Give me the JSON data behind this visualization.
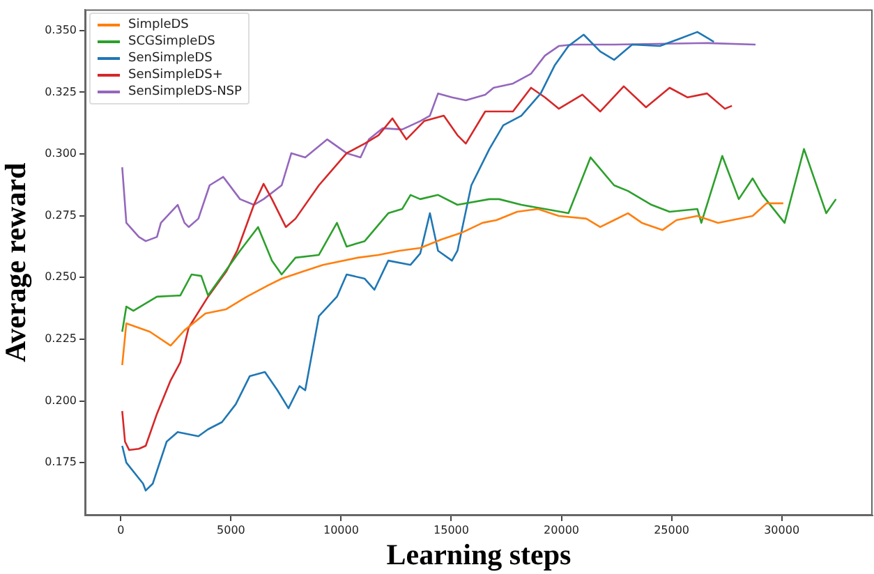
{
  "chart_data": {
    "type": "line",
    "xlabel": "Learning steps",
    "ylabel": "Average reward",
    "xlim": [
      -1625,
      34125
    ],
    "ylim": [
      0.1536,
      0.3585
    ],
    "xticks": [
      0,
      5000,
      10000,
      15000,
      20000,
      25000,
      30000
    ],
    "yticks": [
      {
        "value": 0.175,
        "label": "0.175"
      },
      {
        "value": 0.2,
        "label": "0.200"
      },
      {
        "value": 0.225,
        "label": "0.225"
      },
      {
        "value": 0.25,
        "label": "0.250"
      },
      {
        "value": 0.275,
        "label": "0.275"
      },
      {
        "value": 0.3,
        "label": "0.300"
      },
      {
        "value": 0.325,
        "label": "0.325"
      },
      {
        "value": 0.35,
        "label": "0.350"
      }
    ],
    "grid": false,
    "legend": "top left",
    "series": [
      {
        "name": "SimpleDS",
        "color": "#ff7f0e",
        "x": [
          63,
          250,
          1320,
          2260,
          2890,
          3840,
          4780,
          5720,
          6670,
          7300,
          8240,
          9180,
          10760,
          11700,
          12640,
          13590,
          14530,
          15470,
          16420,
          17050,
          17990,
          18930,
          19880,
          21130,
          21760,
          22390,
          23020,
          23650,
          24590,
          25220,
          26170,
          27110,
          28680,
          29310,
          30070
        ],
        "values": [
          0.2145,
          0.2314,
          0.228,
          0.2224,
          0.2286,
          0.2354,
          0.2371,
          0.2422,
          0.2467,
          0.2495,
          0.2523,
          0.2551,
          0.258,
          0.2591,
          0.2608,
          0.2619,
          0.2653,
          0.2681,
          0.2721,
          0.2732,
          0.2766,
          0.2777,
          0.2749,
          0.2738,
          0.2704,
          0.2732,
          0.276,
          0.2721,
          0.2692,
          0.2732,
          0.2749,
          0.2721,
          0.2749,
          0.28,
          0.28
        ]
      },
      {
        "name": "SCGSimpleDS",
        "color": "#2ca02c",
        "x": [
          63,
          250,
          570,
          1640,
          2700,
          3210,
          3650,
          3960,
          5410,
          6230,
          6860,
          7300,
          7930,
          8990,
          9810,
          10250,
          11070,
          12140,
          12770,
          13150,
          13590,
          14400,
          15280,
          16730,
          17170,
          18180,
          19250,
          20320,
          21320,
          22390,
          23020,
          24090,
          24910,
          26170,
          26350,
          27300,
          28050,
          28680,
          29120,
          30130,
          31010,
          32020,
          32460
        ],
        "values": [
          0.228,
          0.2382,
          0.2365,
          0.2422,
          0.2427,
          0.2512,
          0.2506,
          0.2427,
          0.2608,
          0.2704,
          0.2568,
          0.2512,
          0.258,
          0.2591,
          0.2721,
          0.2625,
          0.2647,
          0.276,
          0.2777,
          0.2834,
          0.2817,
          0.2834,
          0.2794,
          0.2817,
          0.2817,
          0.2794,
          0.2777,
          0.276,
          0.2986,
          0.2873,
          0.285,
          0.2794,
          0.2766,
          0.2777,
          0.2721,
          0.2992,
          0.2817,
          0.2901,
          0.2834,
          0.2721,
          0.302,
          0.276,
          0.2817
        ]
      },
      {
        "name": "SenSimpleDS",
        "color": "#1f77b4",
        "x": [
          63,
          250,
          1010,
          1130,
          1450,
          2080,
          2580,
          3520,
          3960,
          4590,
          5220,
          5850,
          6540,
          7110,
          7610,
          8110,
          8370,
          8990,
          9810,
          10250,
          11070,
          11510,
          12140,
          13150,
          13590,
          14030,
          14400,
          15030,
          15280,
          15910,
          16730,
          17360,
          18180,
          19060,
          19690,
          20320,
          21010,
          21760,
          22390,
          23210,
          24470,
          25350,
          26170,
          26920
        ],
        "values": [
          0.1818,
          0.175,
          0.1665,
          0.1637,
          0.1665,
          0.1835,
          0.1874,
          0.1857,
          0.1885,
          0.1914,
          0.1987,
          0.21,
          0.2117,
          0.2043,
          0.197,
          0.206,
          0.2043,
          0.2343,
          0.2422,
          0.2512,
          0.2495,
          0.245,
          0.2568,
          0.2551,
          0.2597,
          0.276,
          0.2608,
          0.2568,
          0.2608,
          0.2873,
          0.302,
          0.3116,
          0.3155,
          0.3245,
          0.3358,
          0.3437,
          0.3483,
          0.3415,
          0.3381,
          0.3443,
          0.3437,
          0.3466,
          0.3494,
          0.3454
        ]
      },
      {
        "name": "SenSimpleDS+",
        "color": "#d62728",
        "x": [
          63,
          190,
          380,
          820,
          1130,
          1640,
          2260,
          2700,
          3080,
          3960,
          4780,
          5280,
          6040,
          6480,
          6860,
          7490,
          7930,
          8990,
          10250,
          11070,
          11700,
          12330,
          12960,
          13770,
          14660,
          15280,
          15660,
          16540,
          16920,
          17800,
          18620,
          19250,
          19880,
          20950,
          21760,
          22830,
          23840,
          24910,
          25730,
          26610,
          27420,
          27740
        ],
        "values": [
          0.1959,
          0.1835,
          0.1801,
          0.1806,
          0.1818,
          0.1948,
          0.2083,
          0.2156,
          0.2297,
          0.2422,
          0.2523,
          0.2608,
          0.2794,
          0.2879,
          0.2817,
          0.2704,
          0.2738,
          0.2873,
          0.3003,
          0.3042,
          0.3076,
          0.3144,
          0.3059,
          0.3133,
          0.3155,
          0.3076,
          0.3042,
          0.3172,
          0.3172,
          0.3172,
          0.3268,
          0.3229,
          0.3183,
          0.324,
          0.3172,
          0.3274,
          0.3189,
          0.3268,
          0.3229,
          0.3245,
          0.3183,
          0.3195
        ]
      },
      {
        "name": "SenSimpleDS-NSP",
        "color": "#9467bd",
        "x": [
          63,
          250,
          820,
          1130,
          1640,
          1820,
          2580,
          2890,
          3080,
          3520,
          4030,
          4650,
          5410,
          6040,
          6480,
          7300,
          7740,
          8370,
          9370,
          10250,
          10880,
          11260,
          11890,
          12770,
          13590,
          14030,
          14400,
          15030,
          15660,
          16540,
          16920,
          17800,
          18620,
          19250,
          19880,
          20510,
          22390,
          26610,
          28810
        ],
        "values": [
          0.2946,
          0.2721,
          0.2664,
          0.2647,
          0.2664,
          0.2721,
          0.2794,
          0.2721,
          0.2704,
          0.2738,
          0.2873,
          0.2907,
          0.2817,
          0.2794,
          0.2817,
          0.2873,
          0.3003,
          0.2986,
          0.3059,
          0.3003,
          0.2986,
          0.3059,
          0.3104,
          0.3099,
          0.3133,
          0.3155,
          0.3245,
          0.3229,
          0.3217,
          0.324,
          0.3268,
          0.3285,
          0.3325,
          0.3398,
          0.3437,
          0.3443,
          0.3443,
          0.3449,
          0.3443
        ]
      }
    ]
  }
}
